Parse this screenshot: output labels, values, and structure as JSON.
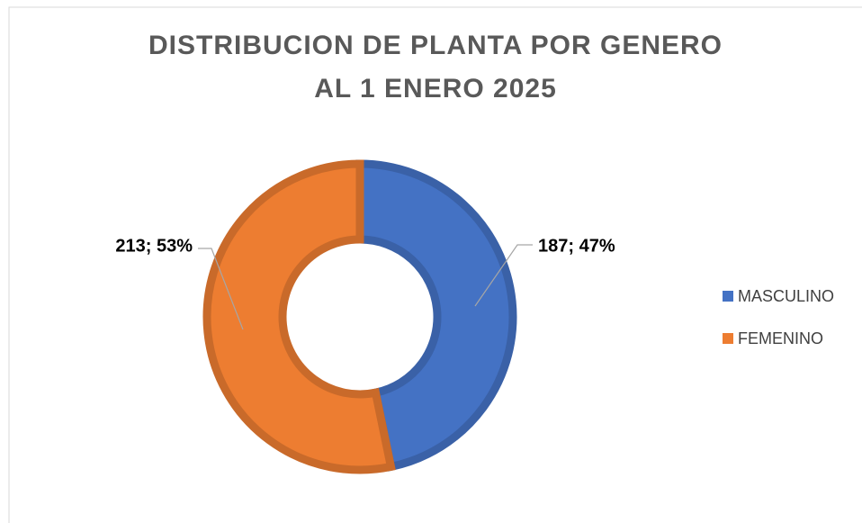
{
  "chart_data": {
    "type": "donut",
    "title": [
      "DISTRIBUCION DE PLANTA POR GENERO",
      "AL 1 ENERO 2025"
    ],
    "categories": [
      "MASCULINO",
      "FEMENINO"
    ],
    "values": [
      187,
      213
    ],
    "value_labels": [
      "187; 47%",
      "213; 53%"
    ],
    "colors": [
      "#4472c4",
      "#ed7d31"
    ],
    "legend": "right"
  }
}
